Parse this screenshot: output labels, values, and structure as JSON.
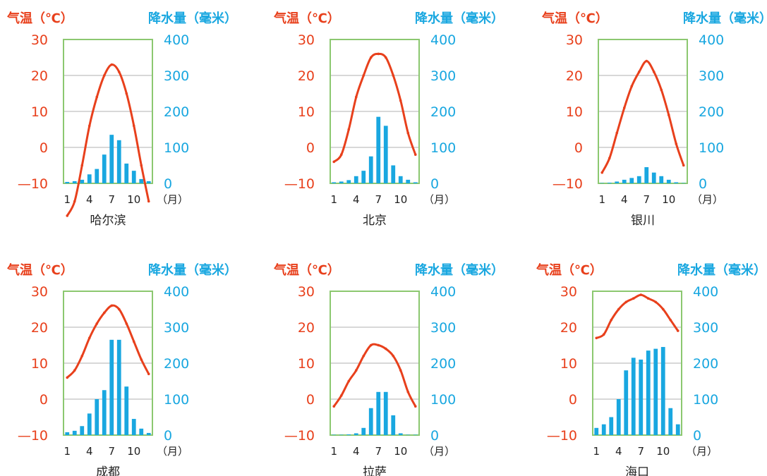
{
  "colors": {
    "temperature": "#e8401c",
    "precipitation": "#19a7e0",
    "frame": "#8cc870",
    "grid": "#b0b0b0"
  },
  "labels": {
    "temp_axis": "气温（℃）",
    "rain_axis": "降水量（毫米）",
    "month_unit": "（月）",
    "temp_ticks": [
      "30",
      "20",
      "10",
      "0",
      "—10"
    ],
    "rain_ticks": [
      "400",
      "300",
      "200",
      "100",
      "0"
    ],
    "month_ticks": [
      "1",
      "4",
      "7",
      "10"
    ]
  },
  "chart_data": [
    {
      "type": "bar+line",
      "title": "哈尔滨",
      "x": [
        1,
        2,
        3,
        4,
        5,
        6,
        7,
        8,
        9,
        10,
        11,
        12
      ],
      "series": [
        {
          "values": [
            -19,
            -15,
            -5,
            6,
            14,
            20,
            23,
            21,
            15,
            6,
            -5,
            -15
          ]
        },
        {
          "values": [
            4,
            6,
            10,
            25,
            40,
            80,
            135,
            120,
            55,
            35,
            12,
            6
          ]
        }
      ],
      "xlabel": "（月）",
      "ylabel": "气温（℃）",
      "y2label": "降水量（毫米）",
      "ylim": [
        -10,
        30
      ],
      "y2lim": [
        0,
        400
      ]
    },
    {
      "type": "bar+line",
      "title": "北京",
      "x": [
        1,
        2,
        3,
        4,
        5,
        6,
        7,
        8,
        9,
        10,
        11,
        12
      ],
      "series": [
        {
          "values": [
            -4,
            -2,
            5,
            14,
            20,
            25,
            26,
            25,
            20,
            13,
            4,
            -2
          ]
        },
        {
          "values": [
            3,
            5,
            9,
            20,
            35,
            75,
            185,
            160,
            50,
            20,
            10,
            3
          ]
        }
      ],
      "xlabel": "（月）",
      "ylabel": "气温（℃）",
      "y2label": "降水量（毫米）",
      "ylim": [
        -10,
        30
      ],
      "y2lim": [
        0,
        400
      ]
    },
    {
      "type": "bar+line",
      "title": "银川",
      "x": [
        1,
        2,
        3,
        4,
        5,
        6,
        7,
        8,
        9,
        10,
        11,
        12
      ],
      "series": [
        {
          "values": [
            -7,
            -3,
            4,
            11,
            17,
            21,
            24,
            21,
            16,
            9,
            1,
            -5
          ]
        },
        {
          "values": [
            1,
            2,
            5,
            10,
            15,
            20,
            45,
            30,
            20,
            10,
            3,
            1
          ]
        }
      ],
      "xlabel": "（月）",
      "ylabel": "气温（℃）",
      "y2label": "降水量（毫米）",
      "ylim": [
        -10,
        30
      ],
      "y2lim": [
        0,
        400
      ]
    },
    {
      "type": "bar+line",
      "title": "成都",
      "x": [
        1,
        2,
        3,
        4,
        5,
        6,
        7,
        8,
        9,
        10,
        11,
        12
      ],
      "series": [
        {
          "values": [
            6,
            8,
            12,
            17,
            21,
            24,
            26,
            25,
            21,
            16,
            11,
            7
          ]
        },
        {
          "values": [
            8,
            12,
            25,
            60,
            100,
            125,
            265,
            265,
            135,
            45,
            18,
            6
          ]
        }
      ],
      "xlabel": "（月）",
      "ylabel": "气温（℃）",
      "y2label": "降水量（毫米）",
      "ylim": [
        -10,
        30
      ],
      "y2lim": [
        0,
        400
      ]
    },
    {
      "type": "bar+line",
      "title": "拉萨",
      "x": [
        1,
        2,
        3,
        4,
        5,
        6,
        7,
        8,
        9,
        10,
        11,
        12
      ],
      "series": [
        {
          "values": [
            -2,
            1,
            5,
            8,
            12,
            15,
            15,
            14,
            12,
            8,
            2,
            -2
          ]
        },
        {
          "values": [
            1,
            1,
            2,
            5,
            20,
            75,
            120,
            120,
            55,
            5,
            1,
            1
          ]
        }
      ],
      "xlabel": "（月）",
      "ylabel": "气温（℃）",
      "y2label": "降水量（毫米）",
      "ylim": [
        -10,
        30
      ],
      "y2lim": [
        0,
        400
      ]
    },
    {
      "type": "bar+line",
      "title": "海口",
      "x": [
        1,
        2,
        3,
        4,
        5,
        6,
        7,
        8,
        9,
        10,
        11,
        12
      ],
      "series": [
        {
          "values": [
            17,
            18,
            22,
            25,
            27,
            28,
            29,
            28,
            27,
            25,
            22,
            19
          ]
        },
        {
          "values": [
            20,
            30,
            50,
            100,
            180,
            215,
            210,
            235,
            240,
            245,
            75,
            30
          ]
        }
      ],
      "xlabel": "（月）",
      "ylabel": "气温（℃）",
      "y2label": "降水量（毫米）",
      "ylim": [
        -10,
        30
      ],
      "y2lim": [
        0,
        400
      ]
    }
  ]
}
